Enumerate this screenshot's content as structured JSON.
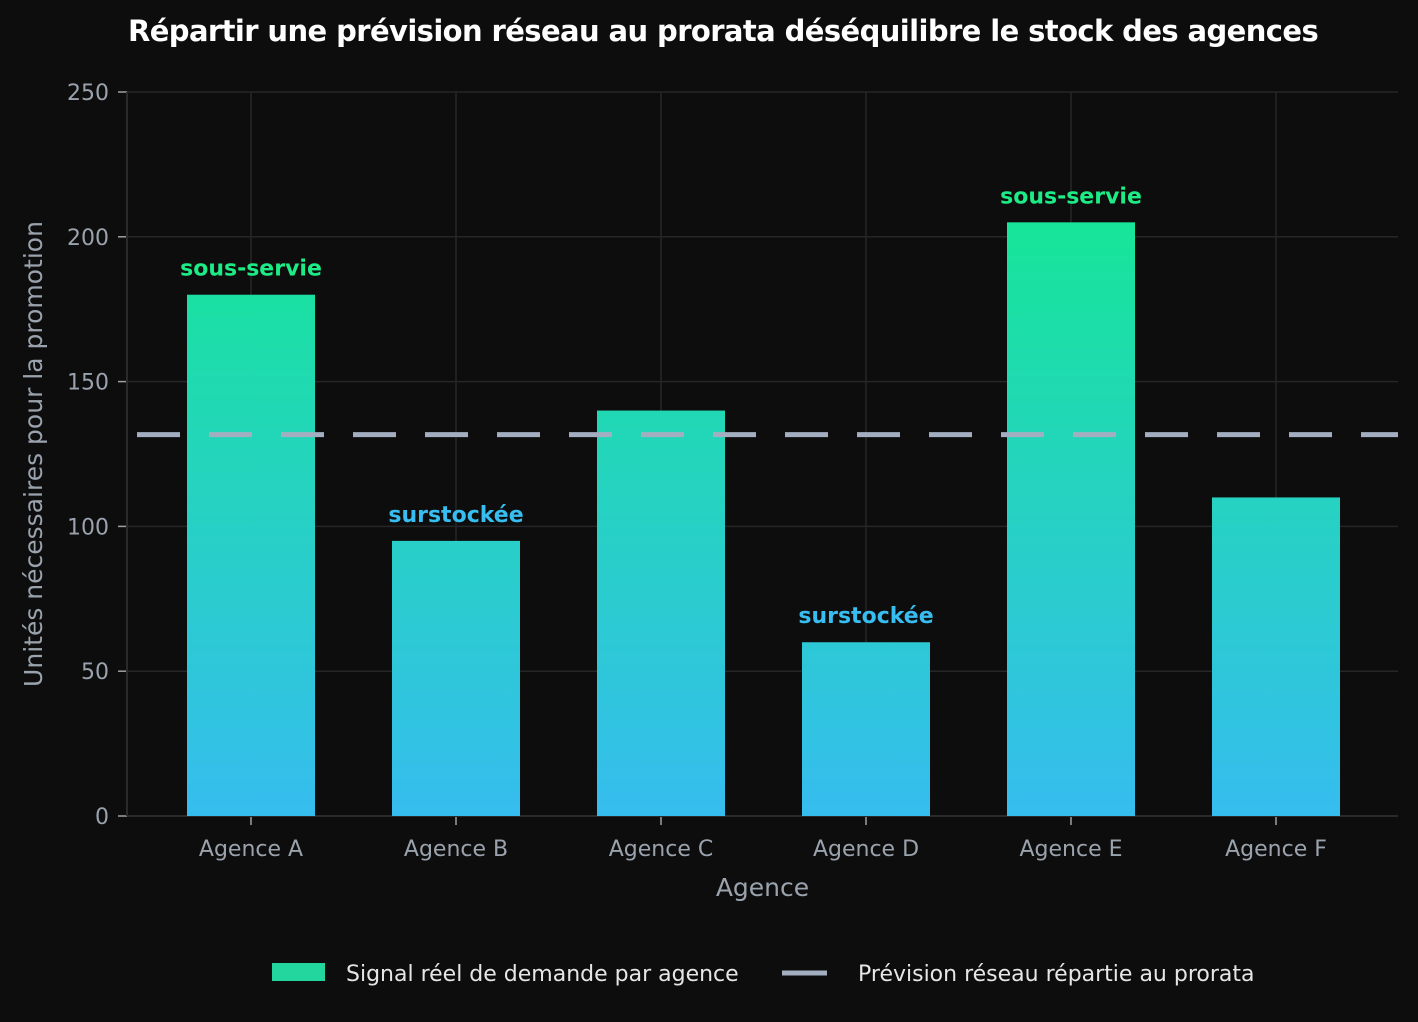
{
  "chart_data": {
    "type": "bar",
    "title": "Répartir une prévision réseau au prorata déséquilibre le stock des agences",
    "xlabel": "Agence",
    "ylabel": "Unités nécessaires pour la promotion",
    "categories": [
      "Agence A",
      "Agence B",
      "Agence C",
      "Agence D",
      "Agence E",
      "Agence F"
    ],
    "series": [
      {
        "name": "Signal réel de demande par agence",
        "values": [
          180,
          95,
          140,
          60,
          205,
          110
        ]
      }
    ],
    "reference_line": {
      "name": "Prévision réseau répartie au prorata",
      "value": 131.7
    },
    "annotations": [
      "sous-servie",
      "surstockée",
      "",
      "surstockée",
      "sous-servie",
      ""
    ],
    "ylim": [
      0,
      250
    ],
    "yticks": [
      0,
      50,
      100,
      150,
      200,
      250
    ],
    "grid": true,
    "legend_position": "bottom",
    "colors": {
      "background": "#0d0d0d",
      "bar_top": "#10ee86",
      "bar_bottom": "#36bdef",
      "reference_line": "#a3afc1",
      "annotation_under": "#1deb86",
      "annotation_over": "#38bdf0",
      "grid": "#262626",
      "text": "#9aa3ad"
    }
  }
}
